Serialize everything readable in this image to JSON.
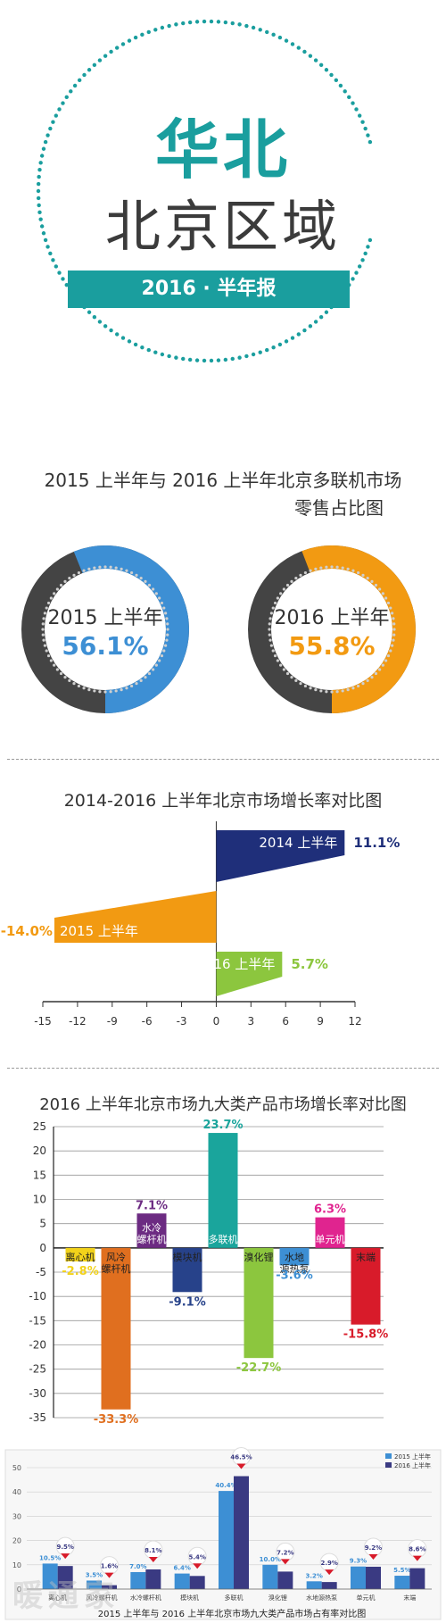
{
  "header": {
    "region": "华北",
    "subregion": "北京区域",
    "banner": "2016 · 半年报",
    "colors": {
      "teal": "#1a9e9e",
      "dots": "#1a9e9e"
    }
  },
  "colors": {
    "blue": "#3d8fd4",
    "orange": "#f29a12",
    "dark": "#444444",
    "navy": "#1f2f7a",
    "green": "#8cc63e"
  },
  "section1": {
    "title_line1": "2015 上半年与 2016 上半年北京多联机市场",
    "title_line2": "零售占比图",
    "donuts": [
      {
        "label": "2015 上半年",
        "value_text": "56.1%",
        "value": 56.1,
        "color": "#3d8fd4"
      },
      {
        "label": "2016 上半年",
        "value_text": "55.8%",
        "value": 55.8,
        "color": "#f29a12"
      }
    ]
  },
  "section2": {
    "title": "2014-2016 上半年北京市场增长率对比图"
  },
  "section3": {
    "title": "2016 上半年北京市场九大类产品市场增长率对比图"
  },
  "section4": {
    "caption": "2015 上半年与 2016 上半年北京市场九大类产品市场占有率对比图",
    "watermark": "暖通家"
  },
  "chart_data": [
    {
      "type": "pie",
      "title": "2015 上半年与 2016 上半年北京多联机市场零售占比图",
      "series": [
        {
          "name": "2015 上半年",
          "values": [
            56.1
          ]
        },
        {
          "name": "2016 上半年",
          "values": [
            55.8
          ]
        }
      ]
    },
    {
      "type": "bar",
      "orientation": "horizontal",
      "title": "2014-2016 上半年北京市场增长率对比图",
      "categories": [
        "2014 上半年",
        "2015 上半年",
        "2016 上半年"
      ],
      "values": [
        11.1,
        -14.0,
        5.7
      ],
      "value_labels": [
        "11.1%",
        "-14.0%",
        "5.7%"
      ],
      "bar_colors": [
        "#1f2f7a",
        "#f29a12",
        "#8cc63e"
      ],
      "xlim": [
        -15,
        12
      ],
      "xticks": [
        -15,
        -12,
        -9,
        -6,
        -3,
        0,
        3,
        6,
        9,
        12
      ]
    },
    {
      "type": "bar",
      "title": "2016 上半年北京市场九大类产品市场增长率对比图",
      "categories": [
        "离心机",
        "风冷螺杆机",
        "水冷螺杆机",
        "模块机",
        "多联机",
        "溴化锂",
        "水地源热泵",
        "单元机",
        "末端"
      ],
      "values": [
        -2.8,
        -33.3,
        7.1,
        -9.1,
        23.7,
        -22.7,
        -3.6,
        6.3,
        -15.8
      ],
      "value_labels": [
        "-2.8%",
        "-33.3%",
        "7.1%",
        "-9.1%",
        "23.7%",
        "-22.7%",
        "-3.6%",
        "6.3%",
        "-15.8%"
      ],
      "bar_colors": [
        "#f2d21a",
        "#e06f1f",
        "#6c2b82",
        "#27428a",
        "#1aa59c",
        "#8cc63e",
        "#3d8fd4",
        "#e0248f",
        "#d81b2a"
      ],
      "ylim": [
        -35,
        25
      ],
      "yticks": [
        25,
        20,
        15,
        10,
        5,
        0,
        -5,
        -10,
        -15,
        -20,
        -25,
        -30,
        -35
      ]
    },
    {
      "type": "bar",
      "title": "2015 上半年与 2016 上半年北京市场九大类产品市场占有率对比图",
      "categories": [
        "离心机",
        "风冷螺杆机",
        "水冷螺杆机",
        "模块机",
        "多联机",
        "溴化锂",
        "水地源热泵",
        "单元机",
        "末端"
      ],
      "series": [
        {
          "name": "2015 上半年",
          "color": "#3d8fd4",
          "values": [
            10.5,
            3.5,
            7.0,
            6.4,
            40.4,
            10.0,
            3.2,
            9.3,
            5.5
          ],
          "labels": [
            "10.5%",
            "3.5%",
            "7.0%",
            "6.4%",
            "40.4%",
            "10.0%",
            "3.2%",
            "9.3%",
            "5.5%"
          ]
        },
        {
          "name": "2016 上半年",
          "color": "#3a3a82",
          "values": [
            9.5,
            1.6,
            8.1,
            5.4,
            46.5,
            7.2,
            2.9,
            9.2,
            8.6
          ],
          "labels": [
            "9.5%",
            "1.6%",
            "8.1%",
            "5.4%",
            "46.5%",
            "7.2%",
            "2.9%",
            "9.2%",
            "8.6%"
          ]
        }
      ],
      "ylim": [
        0,
        50
      ],
      "yticks": [
        0,
        10,
        20,
        30,
        40,
        50
      ],
      "legend": "top-right"
    }
  ]
}
